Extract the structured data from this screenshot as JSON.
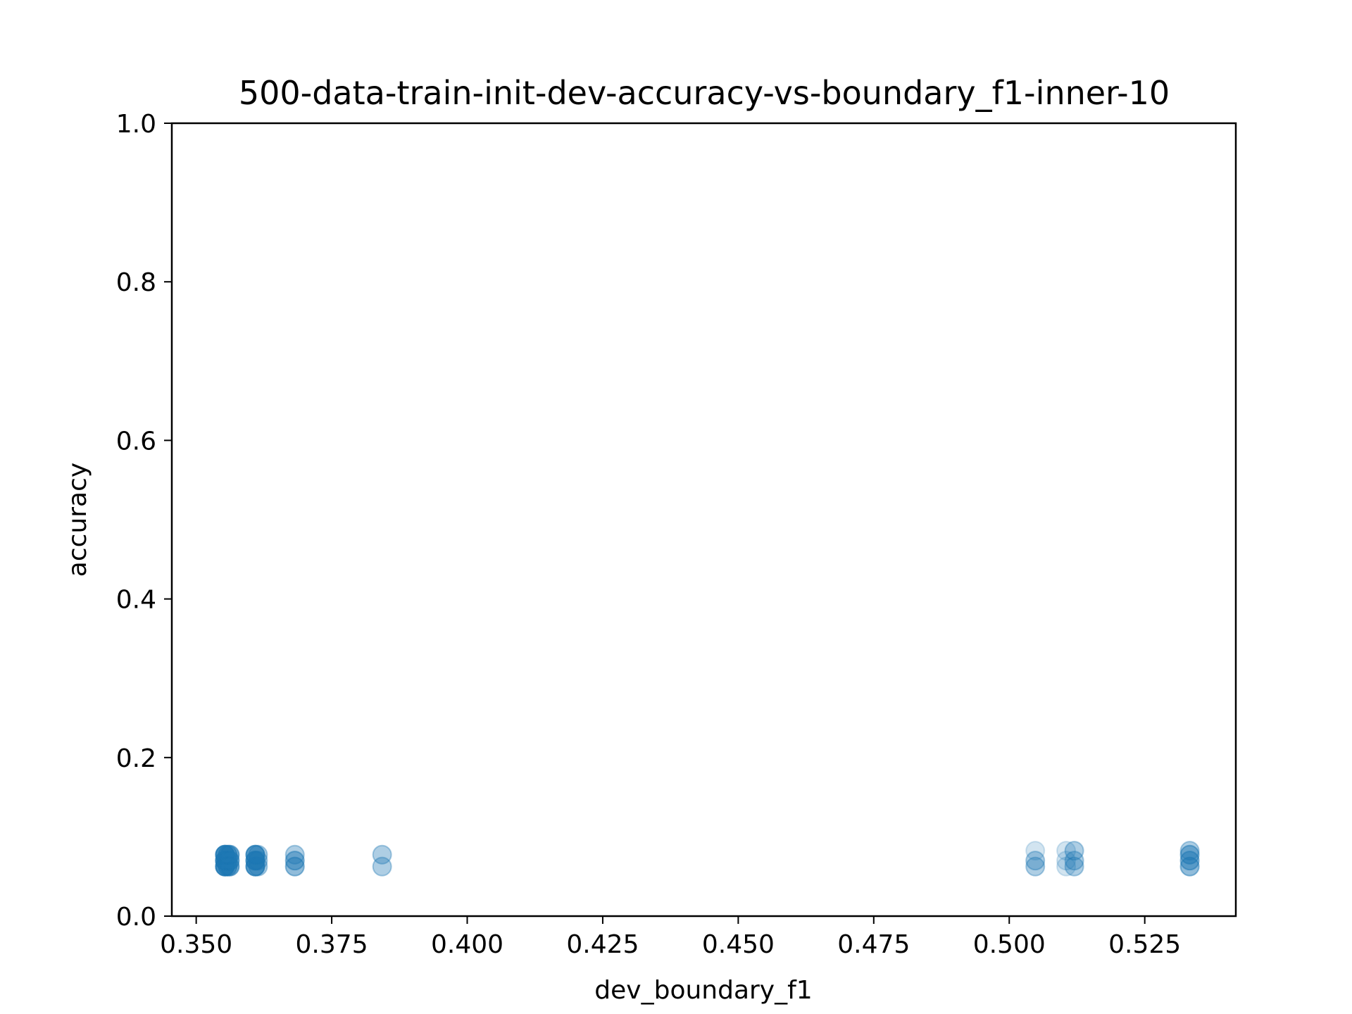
{
  "chart_data": {
    "type": "scatter",
    "title": "500-data-train-init-dev-accuracy-vs-boundary_f1-inner-10",
    "xlabel": "dev_boundary_f1",
    "ylabel": "accuracy",
    "xlim": [
      0.3455,
      0.5418
    ],
    "ylim": [
      0.0,
      1.0
    ],
    "xticks": [
      0.35,
      0.375,
      0.4,
      0.425,
      0.45,
      0.475,
      0.5,
      0.525
    ],
    "xtick_labels": [
      "0.350",
      "0.375",
      "0.400",
      "0.425",
      "0.450",
      "0.475",
      "0.500",
      "0.525"
    ],
    "yticks": [
      0.0,
      0.2,
      0.4,
      0.6,
      0.8,
      1.0
    ],
    "ytick_labels": [
      "0.0",
      "0.2",
      "0.4",
      "0.6",
      "0.8",
      "1.0"
    ],
    "grid": false,
    "legend": "none",
    "marker_color": "#1f77b4",
    "marker_alpha": 0.2,
    "points": [
      {
        "x": 0.3553,
        "y": 0.0625
      },
      {
        "x": 0.3553,
        "y": 0.0625
      },
      {
        "x": 0.3553,
        "y": 0.0625
      },
      {
        "x": 0.3553,
        "y": 0.0625
      },
      {
        "x": 0.3553,
        "y": 0.0625
      },
      {
        "x": 0.3553,
        "y": 0.0625
      },
      {
        "x": 0.3553,
        "y": 0.0625
      },
      {
        "x": 0.3553,
        "y": 0.0625
      },
      {
        "x": 0.3553,
        "y": 0.07
      },
      {
        "x": 0.3553,
        "y": 0.07
      },
      {
        "x": 0.3553,
        "y": 0.07
      },
      {
        "x": 0.3553,
        "y": 0.07
      },
      {
        "x": 0.3553,
        "y": 0.07
      },
      {
        "x": 0.3553,
        "y": 0.07
      },
      {
        "x": 0.3553,
        "y": 0.07
      },
      {
        "x": 0.3553,
        "y": 0.07
      },
      {
        "x": 0.3553,
        "y": 0.0775
      },
      {
        "x": 0.3553,
        "y": 0.0775
      },
      {
        "x": 0.3553,
        "y": 0.0775
      },
      {
        "x": 0.3553,
        "y": 0.0775
      },
      {
        "x": 0.3553,
        "y": 0.0775
      },
      {
        "x": 0.3553,
        "y": 0.0775
      },
      {
        "x": 0.3553,
        "y": 0.0775
      },
      {
        "x": 0.3553,
        "y": 0.0775
      },
      {
        "x": 0.3558,
        "y": 0.0625
      },
      {
        "x": 0.3558,
        "y": 0.0625
      },
      {
        "x": 0.3558,
        "y": 0.0625
      },
      {
        "x": 0.3558,
        "y": 0.0625
      },
      {
        "x": 0.3558,
        "y": 0.07
      },
      {
        "x": 0.3558,
        "y": 0.07
      },
      {
        "x": 0.3558,
        "y": 0.07
      },
      {
        "x": 0.3558,
        "y": 0.07
      },
      {
        "x": 0.3558,
        "y": 0.0775
      },
      {
        "x": 0.3558,
        "y": 0.0775
      },
      {
        "x": 0.3558,
        "y": 0.0775
      },
      {
        "x": 0.3558,
        "y": 0.0775
      },
      {
        "x": 0.3562,
        "y": 0.0625
      },
      {
        "x": 0.3562,
        "y": 0.0625
      },
      {
        "x": 0.3562,
        "y": 0.0625
      },
      {
        "x": 0.3562,
        "y": 0.0625
      },
      {
        "x": 0.3562,
        "y": 0.07
      },
      {
        "x": 0.3562,
        "y": 0.07
      },
      {
        "x": 0.3562,
        "y": 0.07
      },
      {
        "x": 0.3562,
        "y": 0.07
      },
      {
        "x": 0.3562,
        "y": 0.0775
      },
      {
        "x": 0.3562,
        "y": 0.0775
      },
      {
        "x": 0.3562,
        "y": 0.0775
      },
      {
        "x": 0.3562,
        "y": 0.0775
      },
      {
        "x": 0.3609,
        "y": 0.0625
      },
      {
        "x": 0.3609,
        "y": 0.0625
      },
      {
        "x": 0.3609,
        "y": 0.0625
      },
      {
        "x": 0.3609,
        "y": 0.0625
      },
      {
        "x": 0.3609,
        "y": 0.0625
      },
      {
        "x": 0.3609,
        "y": 0.0625
      },
      {
        "x": 0.3609,
        "y": 0.07
      },
      {
        "x": 0.3609,
        "y": 0.07
      },
      {
        "x": 0.3609,
        "y": 0.07
      },
      {
        "x": 0.3609,
        "y": 0.07
      },
      {
        "x": 0.3609,
        "y": 0.07
      },
      {
        "x": 0.3609,
        "y": 0.07
      },
      {
        "x": 0.3609,
        "y": 0.0775
      },
      {
        "x": 0.3609,
        "y": 0.0775
      },
      {
        "x": 0.3609,
        "y": 0.0775
      },
      {
        "x": 0.3609,
        "y": 0.0775
      },
      {
        "x": 0.3609,
        "y": 0.0775
      },
      {
        "x": 0.3609,
        "y": 0.0775
      },
      {
        "x": 0.3614,
        "y": 0.0625
      },
      {
        "x": 0.3614,
        "y": 0.0625
      },
      {
        "x": 0.3614,
        "y": 0.07
      },
      {
        "x": 0.3614,
        "y": 0.07
      },
      {
        "x": 0.3614,
        "y": 0.0775
      },
      {
        "x": 0.3614,
        "y": 0.0775
      },
      {
        "x": 0.3682,
        "y": 0.0625
      },
      {
        "x": 0.3682,
        "y": 0.0625
      },
      {
        "x": 0.3682,
        "y": 0.0625
      },
      {
        "x": 0.3682,
        "y": 0.07
      },
      {
        "x": 0.3682,
        "y": 0.07
      },
      {
        "x": 0.3682,
        "y": 0.07
      },
      {
        "x": 0.3682,
        "y": 0.0775
      },
      {
        "x": 0.3682,
        "y": 0.0775
      },
      {
        "x": 0.3843,
        "y": 0.0625
      },
      {
        "x": 0.3843,
        "y": 0.0625
      },
      {
        "x": 0.3843,
        "y": 0.0775
      },
      {
        "x": 0.3843,
        "y": 0.0775
      },
      {
        "x": 0.5048,
        "y": 0.0625
      },
      {
        "x": 0.5048,
        "y": 0.0625
      },
      {
        "x": 0.5048,
        "y": 0.07
      },
      {
        "x": 0.5048,
        "y": 0.07
      },
      {
        "x": 0.5048,
        "y": 0.0825
      },
      {
        "x": 0.5105,
        "y": 0.0625
      },
      {
        "x": 0.5105,
        "y": 0.07
      },
      {
        "x": 0.5105,
        "y": 0.0825
      },
      {
        "x": 0.512,
        "y": 0.0625
      },
      {
        "x": 0.512,
        "y": 0.0625
      },
      {
        "x": 0.512,
        "y": 0.07
      },
      {
        "x": 0.512,
        "y": 0.07
      },
      {
        "x": 0.512,
        "y": 0.0825
      },
      {
        "x": 0.512,
        "y": 0.0825
      },
      {
        "x": 0.5333,
        "y": 0.0625
      },
      {
        "x": 0.5333,
        "y": 0.0625
      },
      {
        "x": 0.5333,
        "y": 0.0625
      },
      {
        "x": 0.5333,
        "y": 0.07
      },
      {
        "x": 0.5333,
        "y": 0.07
      },
      {
        "x": 0.5333,
        "y": 0.07
      },
      {
        "x": 0.5333,
        "y": 0.0775
      },
      {
        "x": 0.5333,
        "y": 0.0775
      },
      {
        "x": 0.5333,
        "y": 0.0775
      },
      {
        "x": 0.5333,
        "y": 0.0825
      },
      {
        "x": 0.5333,
        "y": 0.0825
      }
    ]
  }
}
